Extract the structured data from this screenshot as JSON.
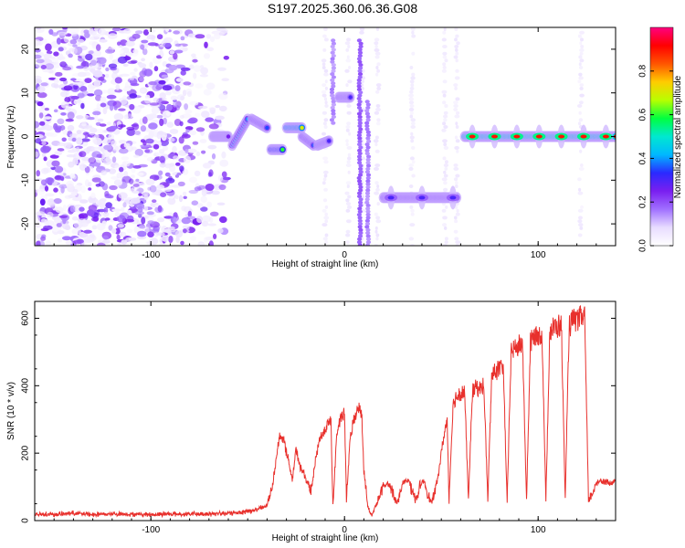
{
  "figure": {
    "title": "S197.2025.360.06.36.G08"
  },
  "chart_data": [
    {
      "type": "heatmap",
      "title": "S197.2025.360.06.36.G08",
      "xlabel": "Height of straight line (km)",
      "ylabel": "Frequency (Hz)",
      "xlim": [
        -160,
        140
      ],
      "ylim": [
        -25,
        25
      ],
      "xticks": [
        -100,
        0,
        100
      ],
      "yticks": [
        -20,
        -10,
        0,
        10,
        20
      ],
      "colorbar": {
        "label": "Normalized spectral amplitude",
        "range": [
          0,
          1
        ],
        "ticks": [
          "0.0",
          "0.2",
          "0.4",
          "0.6",
          "0.8"
        ],
        "tick_values": [
          0,
          0.2,
          0.4,
          0.6,
          0.8
        ],
        "colormap": [
          "#ffffff",
          "#e8dcff",
          "#a070ff",
          "#7a1ff0",
          "#2a2aff",
          "#00b8ff",
          "#00e8d0",
          "#00ff40",
          "#b8ff00",
          "#ffcc00",
          "#ff5500",
          "#ff0000",
          "#ff0080"
        ]
      },
      "noise_region_x": [
        -160,
        -70
      ],
      "tracks": [
        {
          "x": [
            -68,
            -60
          ],
          "f": [
            0,
            0
          ],
          "amp": 0.25
        },
        {
          "x": [
            -58,
            -50
          ],
          "f": [
            -2,
            4
          ],
          "amp": 0.4
        },
        {
          "x": [
            -48,
            -40
          ],
          "f": [
            4,
            2
          ],
          "amp": 0.35
        },
        {
          "x": [
            -38,
            -32
          ],
          "f": [
            -3,
            -3
          ],
          "amp": 0.6
        },
        {
          "x": [
            -30,
            -22
          ],
          "f": [
            2,
            2
          ],
          "amp": 0.7
        },
        {
          "x": [
            -22,
            -16
          ],
          "f": [
            0,
            -2
          ],
          "amp": 0.35
        },
        {
          "x": [
            -14,
            -8
          ],
          "f": [
            -2,
            -1
          ],
          "amp": 0.3
        },
        {
          "x": [
            -3,
            3
          ],
          "f": [
            9,
            9
          ],
          "amp": 0.3
        },
        {
          "x": [
            20,
            58
          ],
          "f": [
            -14,
            -14
          ],
          "amp": 0.3
        },
        {
          "x": [
            62,
            140
          ],
          "f": [
            0,
            0
          ],
          "amp": 0.9
        }
      ]
    },
    {
      "type": "line",
      "xlabel": "Height of straight line (km)",
      "ylabel": "SNR (10 * v/v)",
      "xlim": [
        -160,
        140
      ],
      "ylim": [
        0,
        650
      ],
      "xticks": [
        -100,
        0,
        100
      ],
      "yticks": [
        0,
        200,
        400,
        600
      ],
      "color": "#e8302c",
      "points": [
        [
          -160,
          20
        ],
        [
          -150,
          18
        ],
        [
          -140,
          22
        ],
        [
          -130,
          18
        ],
        [
          -120,
          20
        ],
        [
          -110,
          19
        ],
        [
          -100,
          18
        ],
        [
          -90,
          20
        ],
        [
          -80,
          19
        ],
        [
          -70,
          20
        ],
        [
          -60,
          21
        ],
        [
          -50,
          28
        ],
        [
          -45,
          32
        ],
        [
          -40,
          45
        ],
        [
          -37,
          110
        ],
        [
          -35,
          200
        ],
        [
          -33,
          260
        ],
        [
          -31,
          230
        ],
        [
          -29,
          180
        ],
        [
          -27,
          120
        ],
        [
          -25,
          210
        ],
        [
          -23,
          160
        ],
        [
          -21,
          140
        ],
        [
          -19,
          110
        ],
        [
          -17,
          90
        ],
        [
          -15,
          180
        ],
        [
          -13,
          240
        ],
        [
          -11,
          260
        ],
        [
          -9,
          280
        ],
        [
          -7,
          300
        ],
        [
          -6,
          40
        ],
        [
          -4,
          260
        ],
        [
          -2,
          300
        ],
        [
          0,
          320
        ],
        [
          1,
          60
        ],
        [
          3,
          250
        ],
        [
          5,
          300
        ],
        [
          7,
          340
        ],
        [
          9,
          310
        ],
        [
          10,
          150
        ],
        [
          12,
          40
        ],
        [
          14,
          15
        ],
        [
          16,
          40
        ],
        [
          18,
          70
        ],
        [
          20,
          100
        ],
        [
          22,
          110
        ],
        [
          24,
          100
        ],
        [
          27,
          50
        ],
        [
          30,
          110
        ],
        [
          33,
          120
        ],
        [
          35,
          90
        ],
        [
          37,
          60
        ],
        [
          39,
          100
        ],
        [
          41,
          120
        ],
        [
          43,
          80
        ],
        [
          45,
          50
        ],
        [
          48,
          120
        ],
        [
          51,
          240
        ],
        [
          53,
          300
        ],
        [
          54,
          60
        ],
        [
          56,
          340
        ],
        [
          58,
          370
        ],
        [
          60,
          380
        ],
        [
          62,
          385
        ],
        [
          64,
          60
        ],
        [
          66,
          380
        ],
        [
          68,
          395
        ],
        [
          70,
          390
        ],
        [
          72,
          400
        ],
        [
          74,
          60
        ],
        [
          76,
          430
        ],
        [
          78,
          445
        ],
        [
          80,
          450
        ],
        [
          82,
          455
        ],
        [
          84,
          50
        ],
        [
          86,
          500
        ],
        [
          88,
          510
        ],
        [
          90,
          520
        ],
        [
          92,
          520
        ],
        [
          94,
          55
        ],
        [
          96,
          530
        ],
        [
          98,
          545
        ],
        [
          100,
          550
        ],
        [
          102,
          555
        ],
        [
          104,
          55
        ],
        [
          106,
          565
        ],
        [
          108,
          570
        ],
        [
          110,
          575
        ],
        [
          112,
          580
        ],
        [
          114,
          60
        ],
        [
          116,
          580
        ],
        [
          118,
          590
        ],
        [
          120,
          595
        ],
        [
          122,
          600
        ],
        [
          124,
          610
        ],
        [
          126,
          60
        ],
        [
          128,
          80
        ],
        [
          130,
          110
        ],
        [
          132,
          120
        ],
        [
          135,
          115
        ],
        [
          138,
          110
        ],
        [
          140,
          120
        ]
      ]
    }
  ]
}
